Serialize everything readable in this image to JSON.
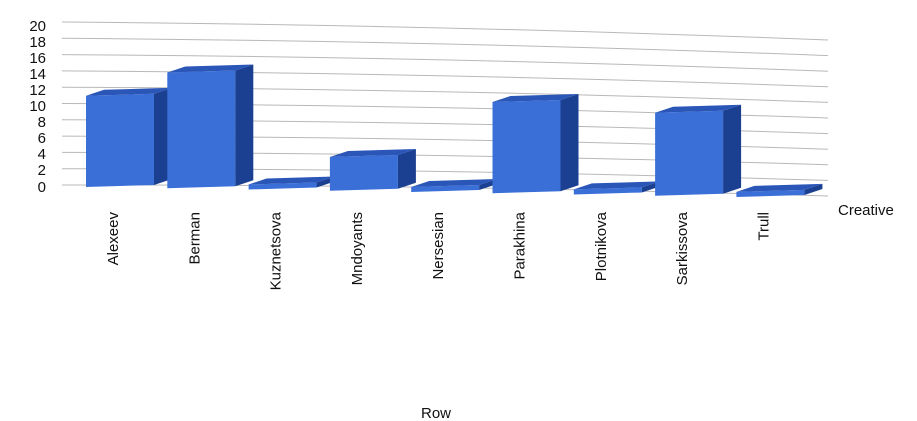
{
  "chart_data": {
    "type": "bar",
    "title": "",
    "xlabel": "Row",
    "ylabel": "",
    "ylim": [
      0,
      20
    ],
    "yticks": [
      0,
      2,
      4,
      6,
      8,
      10,
      12,
      14,
      16,
      18,
      20
    ],
    "grid": true,
    "legend": "none",
    "style": "3d",
    "categories": [
      "Alexeev",
      "Berman",
      "Kuznetsova",
      "Mndoyants",
      "Nersesian",
      "Parakhina",
      "Plotnikova",
      "Sarkissova",
      "Trull"
    ],
    "series": [
      {
        "name": "Creative",
        "values": [
          11,
          14,
          0,
          4,
          0,
          11,
          0.5,
          10,
          0.5
        ]
      }
    ],
    "colors": {
      "bar_front": "#3a6fd8",
      "bar_side": "#1b3f91",
      "bar_top": "#2a56b8"
    }
  }
}
